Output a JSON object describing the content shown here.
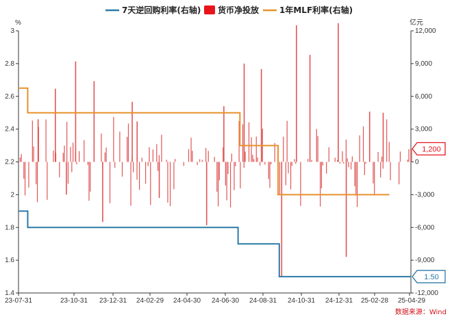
{
  "chart_data": {
    "type": "bar+line",
    "legend": [
      {
        "label": "7天逆回购利率(右轴)",
        "kind": "line",
        "color": "#2b7aa6"
      },
      {
        "label": "货币净投放",
        "kind": "bar",
        "color": "#e8141b"
      },
      {
        "label": "1年MLF利率(右轴)",
        "kind": "line",
        "color": "#e8912b"
      }
    ],
    "left_axis": {
      "unit": "%",
      "ticks": [
        "3",
        "2.8",
        "2.6",
        "2.4",
        "2.2",
        "2",
        "1.8",
        "1.6",
        "1.4"
      ],
      "min": 1.4,
      "max": 3.0
    },
    "right_axis": {
      "unit": "亿元",
      "ticks": [
        "12,000",
        "9,000",
        "6,000",
        "3,000",
        "0",
        "-3,000",
        "-6,000",
        "-9,000",
        "-12,000"
      ],
      "min": -12000,
      "max": 12000
    },
    "x_axis": {
      "ticks": [
        "23-07-31",
        "23-10-31",
        "23-12-31",
        "24-02-29",
        "24-04-30",
        "24-06-30",
        "24-08-31",
        "24-10-31",
        "24-12-31",
        "25-02-28",
        "25-04-29"
      ],
      "start": "2023-07-31",
      "end": "2025-04-29"
    },
    "series": [
      {
        "name": "7天逆回购利率(右轴)",
        "type": "step-line",
        "color": "#2b7aa6",
        "points": [
          {
            "date": "2023-07-31",
            "value": 1.9
          },
          {
            "date": "2023-08-15",
            "value": 1.8
          },
          {
            "date": "2024-07-22",
            "value": 1.7
          },
          {
            "date": "2024-09-27",
            "value": 1.5
          },
          {
            "date": "2025-04-29",
            "value": 1.5
          }
        ]
      },
      {
        "name": "1年MLF利率(右轴)",
        "type": "step-line",
        "color": "#e8912b",
        "points": [
          {
            "date": "2023-07-31",
            "value": 2.65
          },
          {
            "date": "2023-08-15",
            "value": 2.5
          },
          {
            "date": "2024-07-25",
            "value": 2.3
          },
          {
            "date": "2024-09-25",
            "value": 2.0
          },
          {
            "date": "2025-03-25",
            "value": 2.0
          }
        ]
      },
      {
        "name": "货币净投放",
        "type": "bar",
        "color": "#e05555",
        "bar_samples": [
          {
            "date": "2023-08-31",
            "value": 3900
          },
          {
            "date": "2023-09-28",
            "value": 6700
          },
          {
            "date": "2023-10-16",
            "value": -3000
          },
          {
            "date": "2023-10-31",
            "value": 9200
          },
          {
            "date": "2023-11-30",
            "value": 7400
          },
          {
            "date": "2023-12-14",
            "value": -5500
          },
          {
            "date": "2024-01-31",
            "value": 5500
          },
          {
            "date": "2024-02-08",
            "value": 3700
          },
          {
            "date": "2024-03-15",
            "value": -3300
          },
          {
            "date": "2024-05-31",
            "value": -5800
          },
          {
            "date": "2024-06-28",
            "value": 5100
          },
          {
            "date": "2024-07-31",
            "value": 9000
          },
          {
            "date": "2024-08-28",
            "value": 8500
          },
          {
            "date": "2024-09-30",
            "value": -10500
          },
          {
            "date": "2024-10-24",
            "value": 12500
          },
          {
            "date": "2024-11-15",
            "value": 9800
          },
          {
            "date": "2024-12-31",
            "value": 12700
          },
          {
            "date": "2025-01-13",
            "value": -8700
          },
          {
            "date": "2025-02-20",
            "value": 4600
          },
          {
            "date": "2025-03-14",
            "value": 4500
          },
          {
            "date": "2025-04-29",
            "value": 1200
          }
        ]
      }
    ],
    "callouts": [
      {
        "label": "1,200",
        "color": "#e8141b"
      },
      {
        "label": "1.50",
        "color": "#2b7aa6"
      }
    ]
  },
  "source_note": "数据来源：Wind"
}
